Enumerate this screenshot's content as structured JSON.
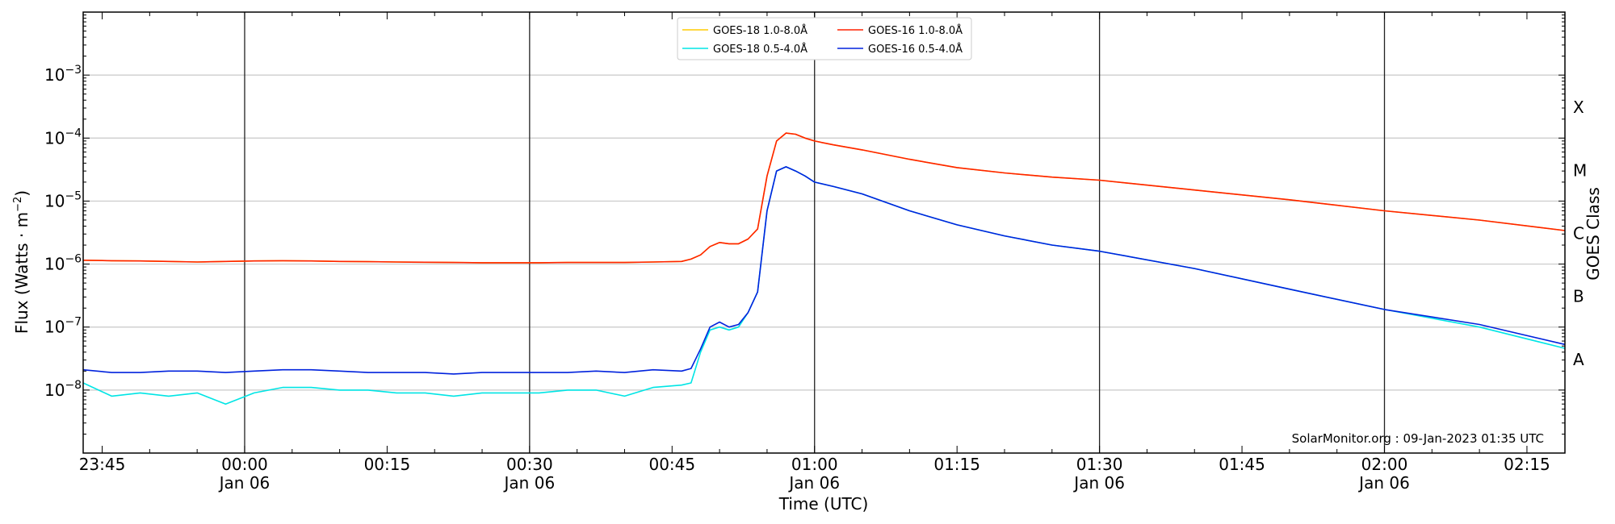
{
  "chart_data": {
    "type": "line",
    "xlabel": "Time (UTC)",
    "ylabel_prefix": "Flux (Watts · m",
    "ylabel_exp": "−2",
    "ylabel_suffix": ")",
    "right_label": "GOES Class",
    "credit": "SolarMonitor.org : 09-Jan-2023 01:35 UTC",
    "y_scale": "log",
    "ylim": [
      1e-09,
      0.01
    ],
    "xlim": [
      "2023-01-05 23:43",
      "2023-01-06 02:19"
    ],
    "grid": "horizontal",
    "legend_placement": "top-center",
    "y_ticks": [
      {
        "mantissa": "10",
        "exp": "−3",
        "value": 0.001
      },
      {
        "mantissa": "10",
        "exp": "−4",
        "value": 0.0001
      },
      {
        "mantissa": "10",
        "exp": "−5",
        "value": 1e-05
      },
      {
        "mantissa": "10",
        "exp": "−6",
        "value": 1e-06
      },
      {
        "mantissa": "10",
        "exp": "−7",
        "value": 1e-07
      },
      {
        "mantissa": "10",
        "exp": "−8",
        "value": 1e-08
      }
    ],
    "x_ticks": [
      {
        "time": "23:45",
        "date": ""
      },
      {
        "time": "00:00",
        "date": "Jan 06"
      },
      {
        "time": "00:15",
        "date": ""
      },
      {
        "time": "00:30",
        "date": "Jan 06"
      },
      {
        "time": "00:45",
        "date": ""
      },
      {
        "time": "01:00",
        "date": "Jan 06"
      },
      {
        "time": "01:15",
        "date": ""
      },
      {
        "time": "01:30",
        "date": "Jan 06"
      },
      {
        "time": "01:45",
        "date": ""
      },
      {
        "time": "02:00",
        "date": "Jan 06"
      },
      {
        "time": "02:15",
        "date": ""
      }
    ],
    "goes_classes": [
      {
        "label": "X",
        "value": 0.000316
      },
      {
        "label": "M",
        "value": 3.16e-05
      },
      {
        "label": "C",
        "value": 3.16e-06
      },
      {
        "label": "B",
        "value": 3.16e-07
      },
      {
        "label": "A",
        "value": 3.16e-08
      }
    ],
    "x": [
      "23:43",
      "23:46",
      "23:49",
      "23:52",
      "23:55",
      "23:58",
      "00:01",
      "00:04",
      "00:07",
      "00:10",
      "00:13",
      "00:16",
      "00:19",
      "00:22",
      "00:25",
      "00:28",
      "00:31",
      "00:34",
      "00:37",
      "00:40",
      "00:43",
      "00:46",
      "00:47",
      "00:48",
      "00:49",
      "00:50",
      "00:51",
      "00:52",
      "00:53",
      "00:54",
      "00:55",
      "00:56",
      "00:57",
      "00:58",
      "00:59",
      "01:00",
      "01:02",
      "01:05",
      "01:10",
      "01:15",
      "01:20",
      "01:25",
      "01:30",
      "01:40",
      "01:50",
      "02:00",
      "02:10",
      "02:19"
    ],
    "series": [
      {
        "name": "GOES-18 1.0-8.0Å",
        "color": "#ffcc00",
        "values": [
          1.15e-06,
          1.13e-06,
          1.12e-06,
          1.1e-06,
          1.08e-06,
          1.1e-06,
          1.12e-06,
          1.13e-06,
          1.12e-06,
          1.1e-06,
          1.09e-06,
          1.08e-06,
          1.07e-06,
          1.06e-06,
          1.05e-06,
          1.05e-06,
          1.05e-06,
          1.06e-06,
          1.06e-06,
          1.06e-06,
          1.08e-06,
          1.1e-06,
          1.2e-06,
          1.4e-06,
          1.9e-06,
          2.2e-06,
          2.1e-06,
          2.1e-06,
          2.5e-06,
          3.6e-06,
          2.5e-05,
          9e-05,
          0.00012,
          0.000115,
          0.0001,
          9e-05,
          7.8e-05,
          6.5e-05,
          4.6e-05,
          3.4e-05,
          2.8e-05,
          2.4e-05,
          2.15e-05,
          1.5e-05,
          1.05e-05,
          7e-06,
          5e-06,
          3.4e-06
        ]
      },
      {
        "name": "GOES-18 0.5-4.0Å",
        "color": "#00e5e5",
        "values": [
          1.3e-08,
          8e-09,
          9e-09,
          8e-09,
          9e-09,
          6e-09,
          9e-09,
          1.1e-08,
          1.1e-08,
          1e-08,
          1e-08,
          9e-09,
          9e-09,
          8e-09,
          9e-09,
          9e-09,
          9e-09,
          1e-08,
          1e-08,
          8e-09,
          1.1e-08,
          1.2e-08,
          1.3e-08,
          4e-08,
          9e-08,
          1e-07,
          9e-08,
          1e-07,
          1.7e-07,
          3.6e-07,
          7e-06,
          3e-05,
          3.5e-05,
          3e-05,
          2.5e-05,
          2e-05,
          1.7e-05,
          1.3e-05,
          7e-06,
          4.2e-06,
          2.8e-06,
          2e-06,
          1.6e-06,
          8.5e-07,
          4e-07,
          1.9e-07,
          1e-07,
          4.6e-08
        ]
      },
      {
        "name": "GOES-16 1.0-8.0Å",
        "color": "#ff2200",
        "values": [
          1.15e-06,
          1.13e-06,
          1.12e-06,
          1.1e-06,
          1.08e-06,
          1.1e-06,
          1.12e-06,
          1.13e-06,
          1.12e-06,
          1.1e-06,
          1.09e-06,
          1.08e-06,
          1.07e-06,
          1.06e-06,
          1.05e-06,
          1.05e-06,
          1.05e-06,
          1.06e-06,
          1.06e-06,
          1.06e-06,
          1.08e-06,
          1.1e-06,
          1.2e-06,
          1.4e-06,
          1.9e-06,
          2.2e-06,
          2.1e-06,
          2.1e-06,
          2.5e-06,
          3.6e-06,
          2.5e-05,
          9e-05,
          0.00012,
          0.000115,
          0.0001,
          9e-05,
          7.8e-05,
          6.5e-05,
          4.6e-05,
          3.4e-05,
          2.8e-05,
          2.4e-05,
          2.15e-05,
          1.5e-05,
          1.05e-05,
          7e-06,
          5e-06,
          3.4e-06
        ]
      },
      {
        "name": "GOES-16 0.5-4.0Å",
        "color": "#0022dd",
        "values": [
          2.1e-08,
          1.9e-08,
          1.9e-08,
          2e-08,
          2e-08,
          1.9e-08,
          2e-08,
          2.1e-08,
          2.1e-08,
          2e-08,
          1.9e-08,
          1.9e-08,
          1.9e-08,
          1.8e-08,
          1.9e-08,
          1.9e-08,
          1.9e-08,
          1.9e-08,
          2e-08,
          1.9e-08,
          2.1e-08,
          2e-08,
          2.2e-08,
          4.5e-08,
          1e-07,
          1.2e-07,
          1e-07,
          1.1e-07,
          1.7e-07,
          3.6e-07,
          7e-06,
          3e-05,
          3.5e-05,
          3e-05,
          2.5e-05,
          2e-05,
          1.7e-05,
          1.3e-05,
          7e-06,
          4.2e-06,
          2.8e-06,
          2e-06,
          1.6e-06,
          8.5e-07,
          4e-07,
          1.9e-07,
          1.1e-07,
          5.3e-08
        ]
      }
    ]
  }
}
